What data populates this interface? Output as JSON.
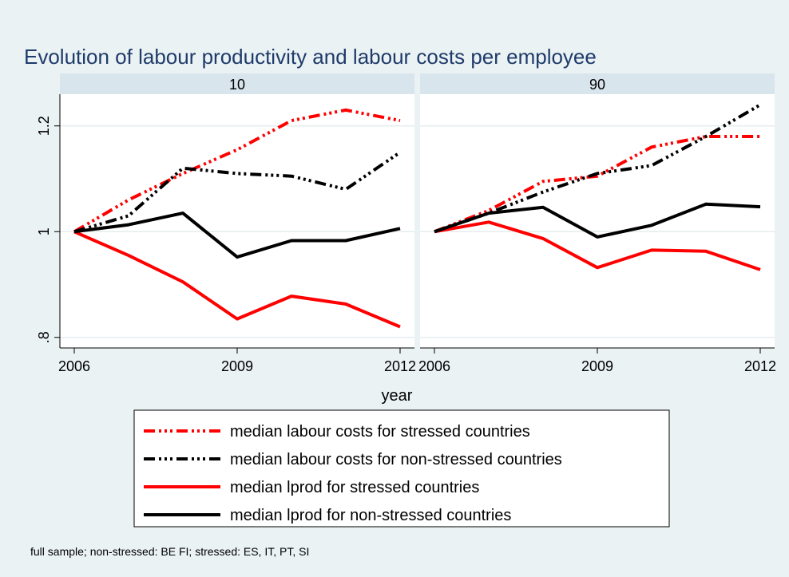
{
  "chart_data": {
    "type": "line",
    "title": "Evolution of labour productivity and labour costs per employee",
    "xlabel": "year",
    "ylabel": "",
    "x": [
      2006,
      2007,
      2008,
      2009,
      2010,
      2011,
      2012
    ],
    "xticks": [
      "2006",
      "2009",
      "2012"
    ],
    "ylim": [
      0.78,
      1.26
    ],
    "yticks": [
      0.8,
      1.0,
      1.2
    ],
    "ytick_labels": [
      ".8",
      "1",
      "1.2"
    ],
    "grid": true,
    "legend_position": "bottom",
    "note": "full sample; non-stressed: BE FI; stressed: ES, IT, PT, SI",
    "series_styles": [
      {
        "name": "median labour costs for stressed countries",
        "color": "#ff0000",
        "style": "dashdot"
      },
      {
        "name": "median labour costs for non-stressed countries",
        "color": "#000000",
        "style": "dashdot"
      },
      {
        "name": "median lprod for stressed countries",
        "color": "#ff0000",
        "style": "solid"
      },
      {
        "name": "median lprod for non-stressed countries",
        "color": "#000000",
        "style": "solid"
      }
    ],
    "panels": [
      {
        "label": "10",
        "series": [
          {
            "name": "median labour costs for stressed countries",
            "values": [
              1.0,
              1.06,
              1.11,
              1.155,
              1.21,
              1.23,
              1.21
            ]
          },
          {
            "name": "median labour costs for non-stressed countries",
            "values": [
              1.0,
              1.03,
              1.12,
              1.11,
              1.105,
              1.08,
              1.15
            ]
          },
          {
            "name": "median lprod for stressed countries",
            "values": [
              1.0,
              0.955,
              0.905,
              0.835,
              0.878,
              0.863,
              0.82
            ]
          },
          {
            "name": "median lprod for non-stressed countries",
            "values": [
              1.0,
              1.013,
              1.035,
              0.952,
              0.983,
              0.983,
              1.006
            ]
          }
        ]
      },
      {
        "label": "90",
        "series": [
          {
            "name": "median labour costs for stressed countries",
            "values": [
              1.0,
              1.04,
              1.095,
              1.105,
              1.16,
              1.18,
              1.18
            ]
          },
          {
            "name": "median labour costs for non-stressed countries",
            "values": [
              1.0,
              1.035,
              1.075,
              1.11,
              1.125,
              1.18,
              1.24
            ]
          },
          {
            "name": "median lprod for stressed countries",
            "values": [
              1.0,
              1.018,
              0.987,
              0.932,
              0.965,
              0.963,
              0.928
            ]
          },
          {
            "name": "median lprod for non-stressed countries",
            "values": [
              1.0,
              1.035,
              1.046,
              0.99,
              1.012,
              1.052,
              1.047
            ]
          }
        ]
      }
    ]
  }
}
